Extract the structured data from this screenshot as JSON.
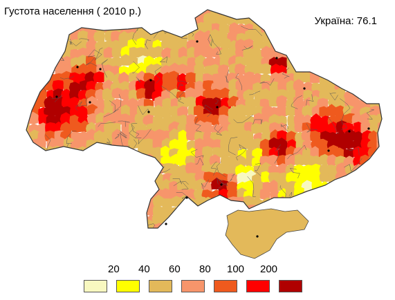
{
  "title": "Густота населення ( 2010 р.)",
  "national_average": "Україна: 76.1",
  "legend": {
    "thresholds": [
      "20",
      "40",
      "60",
      "80",
      "100",
      "200"
    ],
    "colors": [
      "#f8f8c0",
      "#ffff00",
      "#e3b95a",
      "#f7956b",
      "#ef5a1e",
      "#ff0000",
      "#b00000"
    ]
  },
  "map_colors": {
    "border": "#444444",
    "density_classes": [
      "#f8f8c0",
      "#ffff00",
      "#e3b95a",
      "#f7956b",
      "#ef5a1e",
      "#ff0000",
      "#b00000"
    ]
  }
}
